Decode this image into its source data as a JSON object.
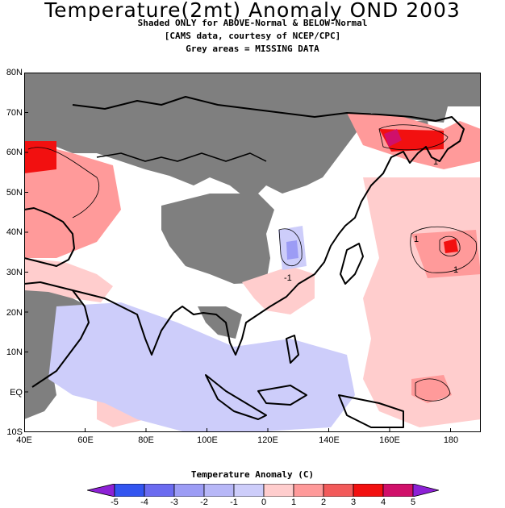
{
  "title": "Temperature(2mt) Anomaly OND 2003",
  "subtitle_lines": [
    "Shaded ONLY for ABOVE-Normal & BELOW-Normal",
    "[CAMS data, courtesy of NCEP/CPC]",
    "Grey areas = MISSING DATA"
  ],
  "map": {
    "lon_range": [
      40,
      190
    ],
    "lat_range": [
      -10,
      80
    ],
    "lat_labels": [
      "80N",
      "70N",
      "60N",
      "50N",
      "40N",
      "30N",
      "20N",
      "10N",
      "EQ",
      "10S"
    ],
    "lon_labels": [
      "40E",
      "60E",
      "80E",
      "100E",
      "120E",
      "140E",
      "160E",
      "180"
    ],
    "contour_labels": [
      "1",
      "1",
      "1",
      "-1"
    ]
  },
  "colorbar": {
    "title": "Temperature Anomaly (C)",
    "ticks": [
      "-5",
      "-4",
      "-3",
      "-2",
      "-1",
      "0",
      "1",
      "2",
      "3",
      "4",
      "5"
    ],
    "colors": [
      "#4b1fd6",
      "#3355f0",
      "#6b6bf0",
      "#9c9cf5",
      "#cdcdfa",
      "#ffffff",
      "#ffcdcd",
      "#ff9a9a",
      "#f25a5a",
      "#f21010",
      "#d0106a",
      "#8d21d6"
    ]
  },
  "legend_colors": {
    "missing": "#7f7f7f",
    "warm1": "#ffcdcd",
    "warm2": "#ff9a9a",
    "warm3": "#f25a5a",
    "warm4": "#f21010",
    "warm5": "#d0106a",
    "cool1": "#cdcdfa",
    "cool2": "#9c9cf5"
  }
}
